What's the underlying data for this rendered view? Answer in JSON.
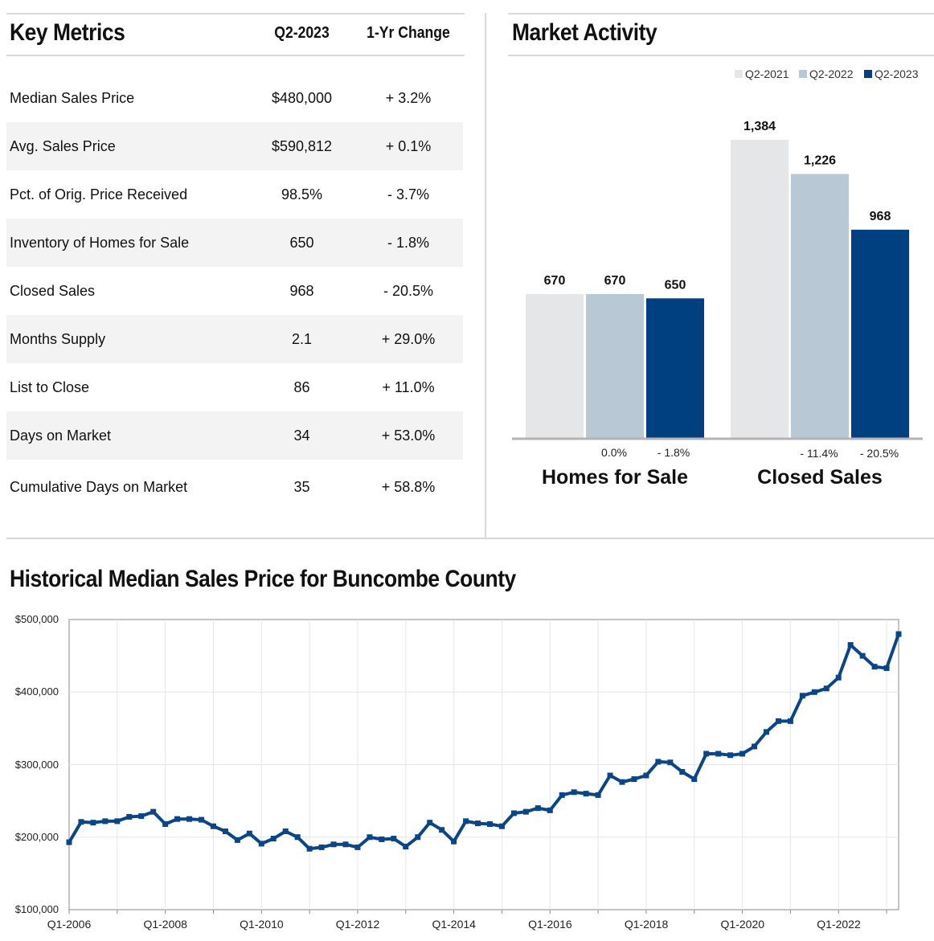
{
  "key_metrics": {
    "title": "Key Metrics",
    "col_period": "Q2-2023",
    "col_change": "1-Yr Change",
    "rows": [
      {
        "label": "Median Sales Price",
        "value": "$480,000",
        "change": "+ 3.2%"
      },
      {
        "label": "Avg. Sales Price",
        "value": "$590,812",
        "change": "+ 0.1%"
      },
      {
        "label": "Pct. of Orig. Price Received",
        "value": "98.5%",
        "change": "- 3.7%"
      },
      {
        "label": "Inventory of Homes for Sale",
        "value": "650",
        "change": "- 1.8%"
      },
      {
        "label": "Closed Sales",
        "value": "968",
        "change": "- 20.5%"
      },
      {
        "label": "Months Supply",
        "value": "2.1",
        "change": "+ 29.0%"
      },
      {
        "label": "List to Close",
        "value": "86",
        "change": "+ 11.0%"
      },
      {
        "label": "Days on Market",
        "value": "34",
        "change": "+ 53.0%"
      },
      {
        "label": "Cumulative Days on Market",
        "value": "35",
        "change": "+ 58.8%"
      }
    ]
  },
  "chart_data": [
    {
      "type": "bar",
      "title": "Market Activity",
      "categories": [
        "Homes for Sale",
        "Closed Sales"
      ],
      "series": [
        {
          "name": "Q2-2021",
          "values": [
            670,
            1384
          ],
          "value_labels": [
            "670",
            "1,384"
          ],
          "color": "#e5e6e8"
        },
        {
          "name": "Q2-2022",
          "values": [
            670,
            1226
          ],
          "value_labels": [
            "670",
            "1,226"
          ],
          "color": "#b8c8d5"
        },
        {
          "name": "Q2-2023",
          "values": [
            650,
            968
          ],
          "value_labels": [
            "650",
            "968"
          ],
          "color": "#004080"
        }
      ],
      "change_labels": [
        [
          "0.0%",
          "- 1.8%"
        ],
        [
          "- 11.4%",
          "- 20.5%"
        ]
      ],
      "legend": "top-right"
    },
    {
      "type": "line",
      "title": "Historical Median Sales Price for Buncombe County",
      "series": [
        {
          "values": [
            193000,
            221000,
            220000,
            222000,
            222000,
            228000,
            229000,
            235000,
            218000,
            225000,
            225000,
            224000,
            215000,
            208000,
            196000,
            205000,
            191000,
            198000,
            208000,
            200000,
            184000,
            186000,
            190000,
            190000,
            186000,
            200000,
            197000,
            198000,
            187000,
            200000,
            220000,
            210000,
            194000,
            222000,
            219000,
            218000,
            215000,
            233000,
            235000,
            240000,
            237000,
            258000,
            262000,
            260000,
            258000,
            285000,
            276000,
            280000,
            285000,
            304000,
            303000,
            290000,
            280000,
            315000,
            315000,
            313000,
            315000,
            325000,
            345000,
            360000,
            360000,
            395000,
            400000,
            405000,
            420000,
            465000,
            450000,
            435000,
            433000,
            480000
          ]
        }
      ],
      "x_labels": [
        "Q1-2006",
        "Q1-2008",
        "Q1-2010",
        "Q1-2012",
        "Q1-2014",
        "Q1-2016",
        "Q1-2018",
        "Q1-2020",
        "Q1-2022"
      ],
      "y_tick_labels": [
        "$100,000",
        "$200,000",
        "$300,000",
        "$400,000",
        "$500,000"
      ],
      "ylim": [
        100000,
        500000
      ],
      "color": "#0a4586",
      "grid": true
    }
  ]
}
